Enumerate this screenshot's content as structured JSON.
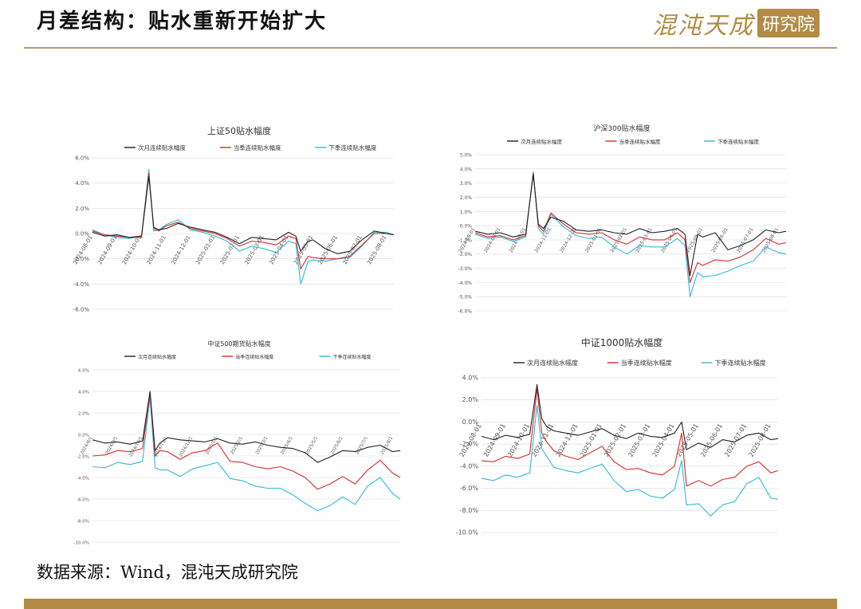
{
  "page": {
    "title": "月差结构：贴水重新开始扩大",
    "source": "数据来源：Wind，混沌天成研究院",
    "logo_main": "混沌天成",
    "logo_box": "研究院"
  },
  "colors": {
    "accent": "#b28c45",
    "near": "#222222",
    "quarter": "#d62d2d",
    "next": "#33b8d8"
  },
  "chart_data": [
    {
      "type": "line",
      "title": "上证50贴水幅度",
      "legend": [
        "次月连续贴水幅度",
        "当季连续贴水幅度",
        "下季连续贴水幅度"
      ],
      "ylim": [
        -6,
        6
      ],
      "yticks": [
        "6.0%",
        "4.0%",
        "2.0%",
        "0.0%",
        "-2.0%",
        "-4.0%",
        "-6.0%"
      ],
      "xlabels": [
        "2024-08-01",
        "2024-09-01",
        "2024-10-01",
        "2024-11-01",
        "2024-12-01",
        "2025-01-01",
        "2025-02-01",
        "2025-03-01",
        "2025-04-01",
        "2025-05-01",
        "2025-06-01",
        "2025-07-01",
        "2025-08-01"
      ],
      "series": [
        {
          "name": "次月连续贴水幅度",
          "x": [
            0,
            0.5,
            1,
            1.5,
            2,
            2.3,
            2.5,
            2.7,
            3,
            3.5,
            4,
            4.5,
            5,
            5.5,
            6,
            6.5,
            7,
            7.5,
            8,
            8.3,
            8.5,
            8.8,
            9,
            9.5,
            10,
            10.5,
            11,
            11.5,
            12,
            12.3
          ],
          "y": [
            0.1,
            -0.2,
            -0.1,
            -0.3,
            -0.2,
            4.5,
            0.5,
            0.3,
            0.4,
            0.8,
            0.5,
            0.3,
            0.1,
            -0.3,
            -0.8,
            -0.3,
            -0.4,
            -0.5,
            0.1,
            -0.2,
            -1.4,
            -0.6,
            -0.5,
            -1.2,
            -1.6,
            -1.4,
            -0.5,
            0.2,
            0.0,
            -0.1
          ]
        },
        {
          "name": "当季连续贴水幅度",
          "x": [
            0,
            0.5,
            1,
            1.5,
            2,
            2.3,
            2.5,
            2.7,
            3,
            3.5,
            4,
            4.5,
            5,
            5.5,
            6,
            6.5,
            7,
            7.5,
            8,
            8.3,
            8.5,
            8.8,
            9,
            9.5,
            10,
            10.5,
            11,
            11.5,
            12,
            12.3
          ],
          "y": [
            0.2,
            -0.1,
            -0.2,
            -0.3,
            -0.3,
            4.8,
            0.4,
            0.2,
            0.6,
            0.9,
            0.4,
            0.2,
            0.0,
            -0.4,
            -1.0,
            -0.6,
            -0.7,
            -0.9,
            -0.2,
            -0.4,
            -2.8,
            -1.8,
            -1.9,
            -2.0,
            -2.0,
            -1.8,
            -0.9,
            0.0,
            0.0,
            -0.1
          ]
        },
        {
          "name": "下季连续贴水幅度",
          "x": [
            0,
            0.5,
            1,
            1.5,
            2,
            2.3,
            2.5,
            2.7,
            3,
            3.5,
            4,
            4.5,
            5,
            5.5,
            6,
            6.5,
            7,
            7.5,
            8,
            8.3,
            8.5,
            8.8,
            9,
            9.5,
            10,
            10.5,
            11,
            11.5,
            12,
            12.3
          ],
          "y": [
            0.3,
            -0.1,
            -0.3,
            -0.4,
            -0.2,
            5.1,
            0.2,
            0.3,
            0.7,
            1.1,
            0.3,
            0.1,
            -0.2,
            -0.6,
            -1.4,
            -1.0,
            -1.2,
            -1.5,
            -0.6,
            -0.8,
            -4.0,
            -2.2,
            -2.1,
            -2.2,
            -2.0,
            -1.9,
            -1.0,
            0.1,
            0.1,
            -0.1
          ]
        }
      ]
    },
    {
      "type": "line",
      "title": "沪深300贴水幅度",
      "legend": [
        "次月连续贴水幅度",
        "当季连续贴水幅度",
        "下季连续贴水幅度"
      ],
      "ylim": [
        -6,
        5
      ],
      "yticks": [
        "5.0%",
        "4.0%",
        "3.0%",
        "2.0%",
        "1.0%",
        "0.0%",
        "-1.0%",
        "-2.0%",
        "-3.0%",
        "-4.0%",
        "-5.0%",
        "-6.0%"
      ],
      "xlabels": [
        "2024-08-01",
        "2024-09-01",
        "2024-10-01",
        "2024-11-01",
        "2024-12-01",
        "2025-01-01",
        "2025-02-01",
        "2025-03-01",
        "2025-04-01",
        "2025-05-01",
        "2025-06-01",
        "2025-07-01",
        "2025-08-01"
      ],
      "series": [
        {
          "name": "次月连续贴水幅度",
          "x": [
            0,
            0.5,
            1,
            1.5,
            2,
            2.3,
            2.5,
            2.7,
            3,
            3.5,
            4,
            4.5,
            5,
            5.5,
            6,
            6.5,
            7,
            7.5,
            8,
            8.3,
            8.5,
            8.8,
            9,
            9.5,
            10,
            10.5,
            11,
            11.5,
            12,
            12.3
          ],
          "y": [
            -0.4,
            -0.6,
            -0.5,
            -0.8,
            -0.6,
            3.6,
            0.1,
            -0.2,
            0.6,
            0.3,
            -0.3,
            -0.4,
            -0.3,
            -0.5,
            -0.6,
            -0.2,
            -0.5,
            -0.4,
            -0.2,
            -0.6,
            -3.5,
            -0.6,
            -0.8,
            -0.5,
            -1.7,
            -1.4,
            -1.0,
            -0.3,
            -0.5,
            -0.4
          ]
        },
        {
          "name": "当季连续贴水幅度",
          "x": [
            0,
            0.5,
            1,
            1.5,
            2,
            2.3,
            2.5,
            2.7,
            3,
            3.5,
            4,
            4.5,
            5,
            5.5,
            6,
            6.5,
            7,
            7.5,
            8,
            8.3,
            8.5,
            8.8,
            9,
            9.5,
            10,
            10.5,
            11,
            11.5,
            12,
            12.3
          ],
          "y": [
            -0.5,
            -0.8,
            -0.7,
            -1.0,
            -0.7,
            3.7,
            0.0,
            -0.4,
            0.9,
            0.1,
            -0.5,
            -0.6,
            -0.5,
            -1.0,
            -1.3,
            -0.8,
            -1.0,
            -1.0,
            -0.5,
            -1.0,
            -4.0,
            -2.6,
            -2.8,
            -2.4,
            -2.5,
            -2.2,
            -1.7,
            -0.9,
            -1.3,
            -1.2
          ]
        },
        {
          "name": "下季连续贴水幅度",
          "x": [
            0,
            0.5,
            1,
            1.5,
            2,
            2.3,
            2.5,
            2.7,
            3,
            3.5,
            4,
            4.5,
            5,
            5.5,
            6,
            6.5,
            7,
            7.5,
            8,
            8.3,
            8.5,
            8.8,
            9,
            9.5,
            10,
            10.5,
            11,
            11.5,
            12,
            12.3
          ],
          "y": [
            -0.6,
            -0.9,
            -0.8,
            -1.1,
            -0.8,
            3.8,
            -0.2,
            -0.6,
            0.8,
            -0.1,
            -0.7,
            -0.9,
            -0.8,
            -1.5,
            -2.0,
            -1.4,
            -1.5,
            -1.5,
            -0.9,
            -1.4,
            -5.0,
            -3.3,
            -3.6,
            -3.5,
            -3.2,
            -2.8,
            -2.5,
            -1.5,
            -1.9,
            -2.0
          ]
        }
      ]
    },
    {
      "type": "line",
      "title": "中证500期货贴水幅度",
      "legend": [
        "次月连续贴水幅度",
        "当季连续贴水幅度",
        "下季连续贴水幅度"
      ],
      "ylim": [
        -10,
        6
      ],
      "yticks": [
        "6.0%",
        "4.0%",
        "2.0%",
        "0.0%",
        "-2.0%",
        "-4.0%",
        "-6.0%",
        "-8.0%",
        "-10.0%"
      ],
      "xlabels": [
        "2024/8/1",
        "2024/9/1",
        "2024/10/1",
        "2024/11/1",
        "2024/12/1",
        "2025/1/1",
        "2025/2/1",
        "2025/3/1",
        "2025/4/1",
        "2025/5/1",
        "2025/6/1",
        "2025/7/1",
        "2025/8/1"
      ],
      "series": [
        {
          "name": "次月连续贴水幅度",
          "x": [
            0,
            0.5,
            1,
            1.5,
            2,
            2.3,
            2.5,
            2.7,
            3,
            3.5,
            4,
            4.5,
            5,
            5.5,
            6,
            6.5,
            7,
            7.5,
            8,
            8.5,
            9,
            9.5,
            10,
            10.5,
            11,
            11.5,
            12,
            12.3
          ],
          "y": [
            -0.5,
            -0.8,
            -0.7,
            -0.9,
            -0.6,
            4.0,
            -1.5,
            -0.8,
            -0.3,
            -0.5,
            -0.6,
            -0.7,
            -0.4,
            -0.8,
            -0.9,
            -0.7,
            -1.0,
            -1.2,
            -1.3,
            -1.7,
            -2.6,
            -2.1,
            -1.5,
            -1.6,
            -1.2,
            -1.0,
            -1.6,
            -1.5
          ]
        },
        {
          "name": "当季连续贴水幅度",
          "x": [
            0,
            0.5,
            1,
            1.5,
            2,
            2.3,
            2.5,
            2.7,
            3,
            3.5,
            4,
            4.5,
            5,
            5.5,
            6,
            6.5,
            7,
            7.5,
            8,
            8.5,
            9,
            9.5,
            10,
            10.5,
            11,
            11.5,
            12,
            12.3
          ],
          "y": [
            -2.0,
            -1.9,
            -1.5,
            -1.6,
            -1.3,
            3.8,
            -2.0,
            -1.5,
            -1.6,
            -2.3,
            -1.7,
            -1.5,
            -0.8,
            -2.5,
            -2.6,
            -3.0,
            -3.2,
            -3.0,
            -3.4,
            -4.0,
            -5.1,
            -4.6,
            -3.9,
            -4.6,
            -3.3,
            -2.4,
            -3.6,
            -4.0
          ]
        },
        {
          "name": "下季连续贴水幅度",
          "x": [
            0,
            0.5,
            1,
            1.5,
            2,
            2.3,
            2.5,
            2.7,
            3,
            3.5,
            4,
            4.5,
            5,
            5.5,
            6,
            6.5,
            7,
            7.5,
            8,
            8.5,
            9,
            9.5,
            10,
            10.5,
            11,
            11.5,
            12,
            12.3
          ],
          "y": [
            -3.0,
            -3.1,
            -2.6,
            -2.8,
            -2.5,
            3.5,
            -3.1,
            -3.3,
            -3.3,
            -3.9,
            -3.2,
            -2.9,
            -2.6,
            -4.1,
            -4.3,
            -4.8,
            -5.0,
            -5.0,
            -5.6,
            -6.4,
            -7.1,
            -6.6,
            -5.8,
            -6.5,
            -4.8,
            -4.0,
            -5.5,
            -6.0
          ]
        }
      ]
    },
    {
      "type": "line",
      "title": "中证1000贴水幅度",
      "legend": [
        "次月连续贴水幅度",
        "当季连续贴水幅度",
        "下季连续贴水幅度"
      ],
      "ylim": [
        -10,
        4
      ],
      "yticks": [
        "4.0%",
        "2.0%",
        "0.0%",
        "-2.0%",
        "-4.0%",
        "-6.0%",
        "-8.0%",
        "-10.0%"
      ],
      "xlabels": [
        "2024-08-01",
        "2024-09-01",
        "2024-10-01",
        "2024-11-01",
        "2024-12-01",
        "2025-01-01",
        "2025-02-01",
        "2025-03-01",
        "2025-04-01",
        "2025-05-01",
        "2025-06-01",
        "2025-07-01",
        "2025-08-01"
      ],
      "series": [
        {
          "name": "次月连续贴水幅度",
          "x": [
            0,
            0.5,
            1,
            1.5,
            2,
            2.3,
            2.5,
            2.7,
            3,
            3.5,
            4,
            4.5,
            5,
            5.5,
            6,
            6.5,
            7,
            7.5,
            8,
            8.3,
            8.5,
            9,
            9.5,
            10,
            10.5,
            11,
            11.5,
            12,
            12.3
          ],
          "y": [
            -1.3,
            -1.6,
            -1.2,
            -1.4,
            -1.1,
            3.4,
            0.3,
            -0.4,
            -0.8,
            -1.0,
            -1.2,
            -0.9,
            -0.6,
            -1.2,
            -1.5,
            -1.0,
            -1.3,
            -1.4,
            -1.0,
            0.0,
            -2.5,
            -1.9,
            -2.3,
            -1.6,
            -1.8,
            -1.2,
            -1.0,
            -1.6,
            -1.5
          ]
        },
        {
          "name": "当季连续贴水幅度",
          "x": [
            0,
            0.5,
            1,
            1.5,
            2,
            2.3,
            2.5,
            2.7,
            3,
            3.5,
            4,
            4.5,
            5,
            5.5,
            6,
            6.5,
            7,
            7.5,
            8,
            8.3,
            8.5,
            9,
            9.5,
            10,
            10.5,
            11,
            11.5,
            12,
            12.3
          ],
          "y": [
            -3.5,
            -3.6,
            -3.1,
            -3.3,
            -2.9,
            3.0,
            -1.0,
            -1.8,
            -2.6,
            -3.1,
            -3.4,
            -2.8,
            -2.2,
            -3.6,
            -4.3,
            -4.2,
            -4.6,
            -4.8,
            -4.0,
            -1.0,
            -5.8,
            -5.3,
            -5.8,
            -5.2,
            -5.0,
            -4.0,
            -3.6,
            -4.6,
            -4.4
          ]
        },
        {
          "name": "下季连续贴水幅度",
          "x": [
            0,
            0.5,
            1,
            1.5,
            2,
            2.3,
            2.5,
            2.7,
            3,
            3.5,
            4,
            4.5,
            5,
            5.5,
            6,
            6.5,
            7,
            7.5,
            8,
            8.3,
            8.5,
            9,
            9.5,
            10,
            10.5,
            11,
            11.5,
            12,
            12.3
          ],
          "y": [
            -5.1,
            -5.3,
            -4.8,
            -5.0,
            -4.6,
            1.5,
            -2.4,
            -3.1,
            -4.1,
            -4.4,
            -4.6,
            -4.2,
            -3.8,
            -5.3,
            -6.3,
            -6.1,
            -6.7,
            -6.9,
            -6.1,
            -3.5,
            -7.5,
            -7.4,
            -8.5,
            -7.5,
            -7.2,
            -5.6,
            -5.0,
            -6.9,
            -7.0
          ]
        }
      ]
    }
  ]
}
